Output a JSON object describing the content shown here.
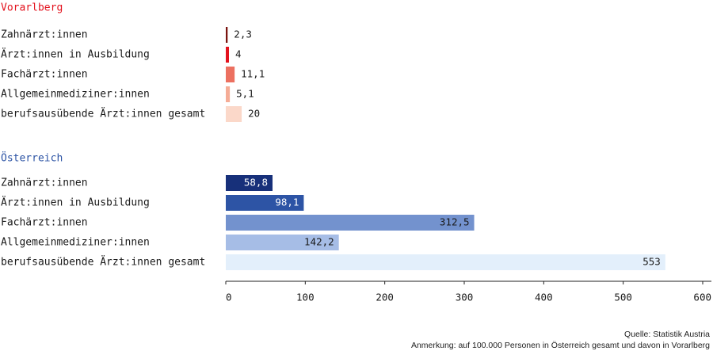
{
  "chart_data": [
    {
      "type": "bar",
      "title": "Vorarlberg",
      "categories": [
        "Zahnärzt:innen",
        "Ärzt:innen in Ausbildung",
        "Fachärzt:innen",
        "Allgemeinmediziner:innen",
        "berufsausübende Ärzt:innen gesamt"
      ],
      "values": [
        2.3,
        4,
        11.1,
        5.1,
        20
      ],
      "value_labels": [
        "2,3",
        "4",
        "11,1",
        "5,1",
        "20"
      ],
      "colors": [
        "#7a1410",
        "#e3121d",
        "#ec7060",
        "#f5ac96",
        "#fbd8c9"
      ],
      "title_color": "#e3121d"
    },
    {
      "type": "bar",
      "title": "Österreich",
      "categories": [
        "Zahnärzt:innen",
        "Ärzt:innen in Ausbildung",
        "Fachärzt:innen",
        "Allgemeinmediziner:innen",
        "berufsausübende Ärzt:innen gesamt"
      ],
      "values": [
        58.8,
        98.1,
        312.5,
        142.2,
        553
      ],
      "value_labels": [
        "58,8",
        "98,1",
        "312,5",
        "142,2",
        "553"
      ],
      "colors": [
        "#17307a",
        "#2d54a5",
        "#7392ce",
        "#a6bde6",
        "#e3effb"
      ],
      "label_colors": [
        "#ffffff",
        "#ffffff",
        "#1a1a1a",
        "#1a1a1a",
        "#1a1a1a"
      ],
      "title_color": "#2d54a5"
    }
  ],
  "axis": {
    "xlim": [
      0,
      600
    ],
    "ticks": [
      0,
      100,
      200,
      300,
      400,
      500,
      600
    ],
    "tick_labels": [
      "0",
      "100",
      "200",
      "300",
      "400",
      "500",
      "600"
    ]
  },
  "footer": {
    "source": "Quelle: Statistik Austria",
    "note": "Anmerkung: auf 100.000 Personen in Österreich gesamt und davon in Vorarlberg"
  }
}
